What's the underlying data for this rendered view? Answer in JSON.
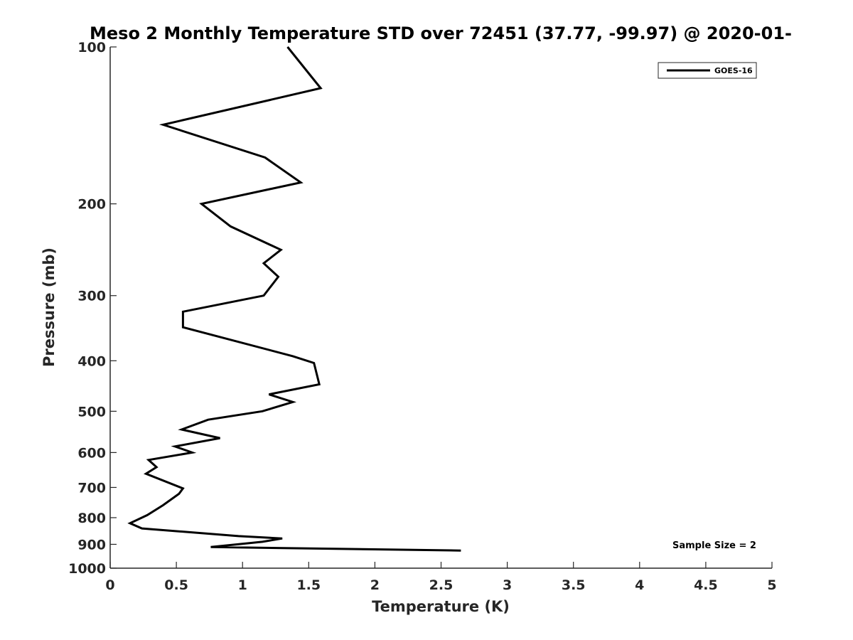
{
  "chart_data": {
    "type": "line",
    "title": "Meso 2 Monthly Temperature STD over 72451 (37.77, -99.97) @ 2020-01-",
    "xlabel": "Temperature (K)",
    "ylabel": "Pressure (mb)",
    "xlim": [
      0,
      5
    ],
    "ylim": [
      100,
      1000
    ],
    "y_scale": "log",
    "y_reversed": true,
    "xticks": [
      "0",
      "0.5",
      "1",
      "1.5",
      "2",
      "2.5",
      "3",
      "3.5",
      "4",
      "4.5",
      "5"
    ],
    "yticks": [
      "100",
      "200",
      "300",
      "400",
      "500",
      "600",
      "700",
      "800",
      "900",
      "1000"
    ],
    "grid": false,
    "legend": {
      "position": "top-right"
    },
    "annotation": "Sample Size = 2",
    "series": [
      {
        "name": "GOES-16",
        "color": "#000000",
        "points": [
          {
            "x": 1.34,
            "p": 100
          },
          {
            "x": 1.59,
            "p": 120
          },
          {
            "x": 0.4,
            "p": 141
          },
          {
            "x": 1.17,
            "p": 163
          },
          {
            "x": 1.44,
            "p": 182
          },
          {
            "x": 0.69,
            "p": 200
          },
          {
            "x": 0.91,
            "p": 221
          },
          {
            "x": 1.29,
            "p": 245
          },
          {
            "x": 1.16,
            "p": 260
          },
          {
            "x": 1.27,
            "p": 276
          },
          {
            "x": 1.16,
            "p": 300
          },
          {
            "x": 0.55,
            "p": 322
          },
          {
            "x": 0.55,
            "p": 345
          },
          {
            "x": 1.38,
            "p": 392
          },
          {
            "x": 1.54,
            "p": 404
          },
          {
            "x": 1.58,
            "p": 444
          },
          {
            "x": 1.2,
            "p": 464
          },
          {
            "x": 1.38,
            "p": 480
          },
          {
            "x": 1.15,
            "p": 500
          },
          {
            "x": 0.74,
            "p": 519
          },
          {
            "x": 0.54,
            "p": 542
          },
          {
            "x": 0.83,
            "p": 563
          },
          {
            "x": 0.49,
            "p": 584
          },
          {
            "x": 0.62,
            "p": 600
          },
          {
            "x": 0.29,
            "p": 620
          },
          {
            "x": 0.35,
            "p": 640
          },
          {
            "x": 0.27,
            "p": 659
          },
          {
            "x": 0.55,
            "p": 703
          },
          {
            "x": 0.52,
            "p": 720
          },
          {
            "x": 0.4,
            "p": 757
          },
          {
            "x": 0.28,
            "p": 791
          },
          {
            "x": 0.15,
            "p": 820
          },
          {
            "x": 0.24,
            "p": 839
          },
          {
            "x": 0.97,
            "p": 868
          },
          {
            "x": 1.3,
            "p": 877
          },
          {
            "x": 1.15,
            "p": 890
          },
          {
            "x": 0.76,
            "p": 911
          },
          {
            "x": 2.65,
            "p": 925
          }
        ]
      }
    ]
  }
}
